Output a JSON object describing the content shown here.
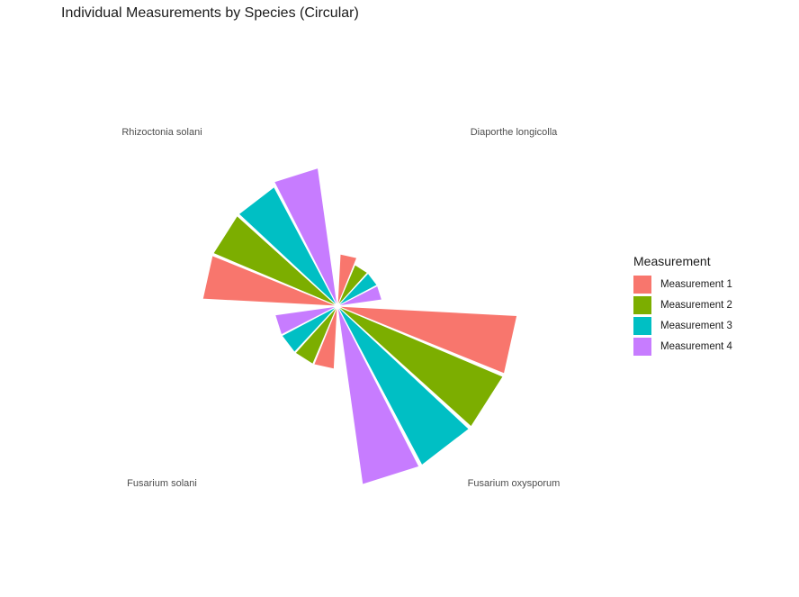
{
  "chart_data": {
    "type": "polar-bar",
    "title": "Individual Measurements by Species (Circular)",
    "categories": [
      "Diaporthe longicolla",
      "Fusarium oxysporum",
      "Fusarium solani",
      "Rhizoctonia solani"
    ],
    "series": [
      {
        "name": "Measurement 1",
        "color": "#F8766D",
        "values": [
          58,
          200,
          70,
          150
        ]
      },
      {
        "name": "Measurement 2",
        "color": "#7CAE00",
        "values": [
          50,
          200,
          70,
          150
        ]
      },
      {
        "name": "Measurement 3",
        "color": "#00BFC4",
        "values": [
          50,
          200,
          70,
          150
        ]
      },
      {
        "name": "Measurement 4",
        "color": "#C77CFF",
        "values": [
          50,
          200,
          70,
          155
        ]
      }
    ],
    "legend": {
      "title": "Measurement",
      "position": "right"
    },
    "grid": false
  }
}
